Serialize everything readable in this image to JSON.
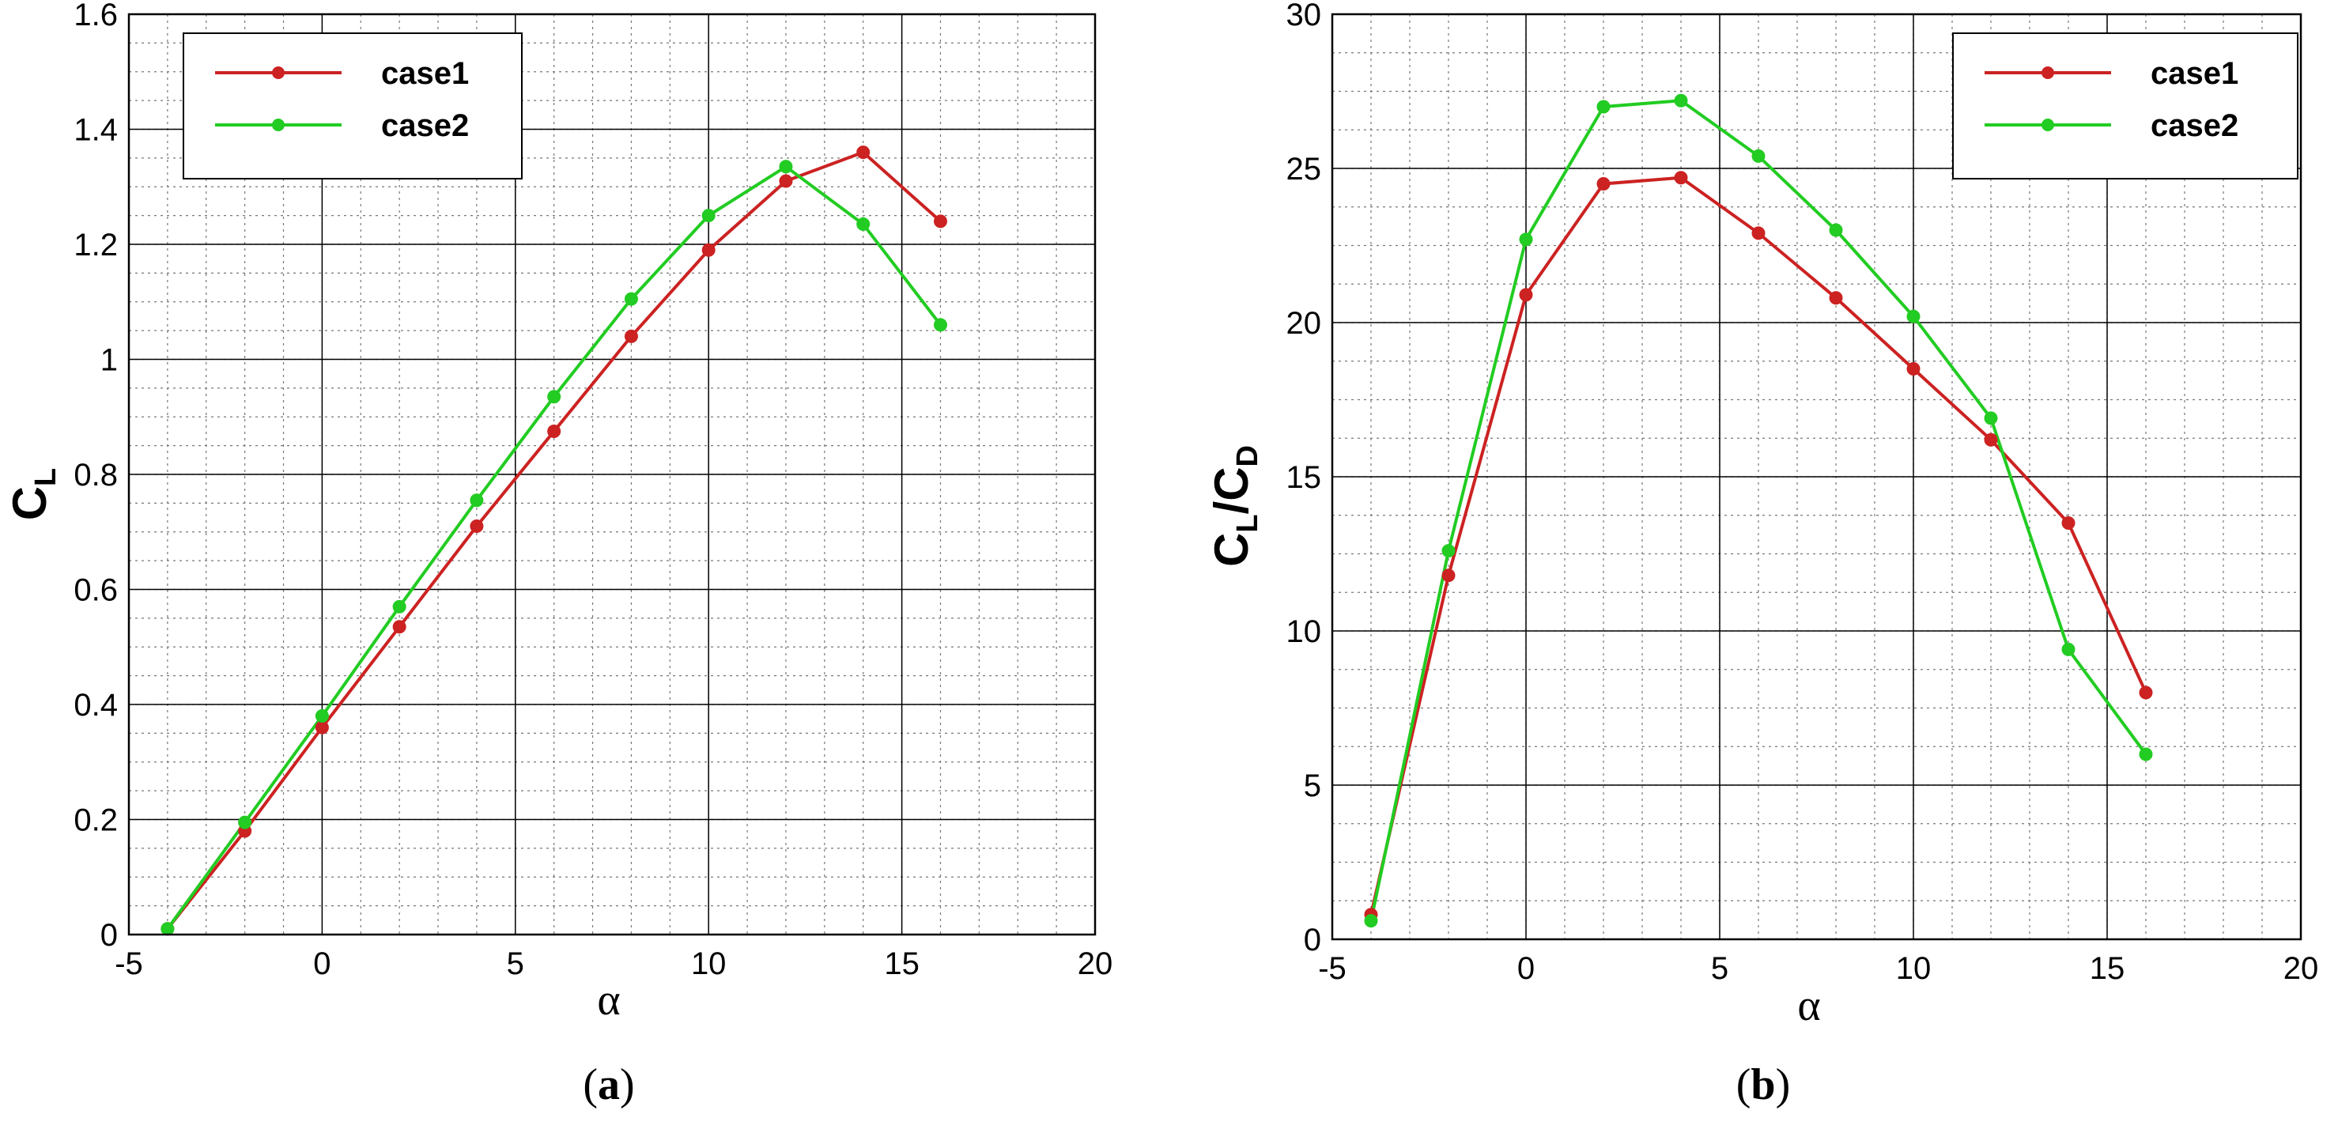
{
  "chart_data": [
    {
      "type": "line",
      "panel_label": "a",
      "xlabel": "α",
      "ylabel": {
        "main": "C",
        "sub": "L"
      },
      "xlim": [
        -5,
        20
      ],
      "ylim": [
        0,
        1.6
      ],
      "x_ticks": [
        "-5",
        "0",
        "5",
        "10",
        "15",
        "20"
      ],
      "y_ticks": [
        "0",
        "0.2",
        "0.4",
        "0.6",
        "0.8",
        "1",
        "1.2",
        "1.4",
        "1.6"
      ],
      "grid": true,
      "legend_position": "top-left",
      "series": [
        {
          "name": "case1",
          "color": "#cc2222",
          "x": [
            -4,
            -2,
            0,
            2,
            4,
            6,
            8,
            10,
            12,
            14,
            16
          ],
          "y": [
            0.01,
            0.18,
            0.36,
            0.535,
            0.71,
            0.875,
            1.04,
            1.19,
            1.31,
            1.36,
            1.24
          ]
        },
        {
          "name": "case2",
          "color": "#22cc22",
          "x": [
            -4,
            -2,
            0,
            2,
            4,
            6,
            8,
            10,
            12,
            14,
            16
          ],
          "y": [
            0.01,
            0.195,
            0.38,
            0.57,
            0.755,
            0.935,
            1.105,
            1.25,
            1.335,
            1.235,
            1.06
          ]
        }
      ]
    },
    {
      "type": "line",
      "panel_label": "b",
      "xlabel": "α",
      "ylabel": {
        "main": "C",
        "sub": "L",
        "sep": "/C",
        "sub2": "D"
      },
      "xlim": [
        -5,
        20
      ],
      "ylim": [
        0,
        30
      ],
      "x_ticks": [
        "-5",
        "0",
        "5",
        "10",
        "15",
        "20"
      ],
      "y_ticks": [
        "0",
        "5",
        "10",
        "15",
        "20",
        "25",
        "30"
      ],
      "grid": true,
      "legend_position": "top-right",
      "series": [
        {
          "name": "case1",
          "color": "#cc2222",
          "x": [
            -4,
            -2,
            0,
            2,
            4,
            6,
            8,
            10,
            12,
            14,
            16
          ],
          "y": [
            0.8,
            11.8,
            20.9,
            24.5,
            24.7,
            22.9,
            20.8,
            18.5,
            16.2,
            13.5,
            8.0
          ]
        },
        {
          "name": "case2",
          "color": "#22cc22",
          "x": [
            -4,
            -2,
            0,
            2,
            4,
            6,
            8,
            10,
            12,
            14,
            16
          ],
          "y": [
            0.6,
            12.6,
            22.7,
            27.0,
            27.2,
            25.4,
            23.0,
            20.2,
            16.9,
            9.4,
            6.0
          ]
        }
      ]
    }
  ]
}
